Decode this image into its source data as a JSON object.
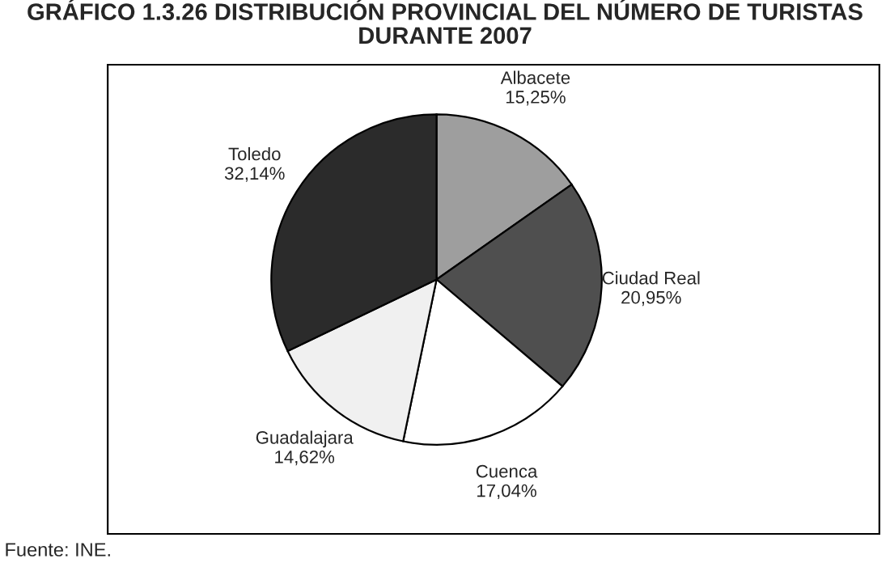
{
  "chart_data": {
    "type": "pie",
    "title": "GRÁFICO 1.3.26 DISTRIBUCIÓN PROVINCIAL DEL NÚMERO DE TURISTAS\nDURANTE 2007",
    "categories": [
      "Albacete",
      "Ciudad Real",
      "Cuenca",
      "Guadalajara",
      "Toledo"
    ],
    "values": [
      15.25,
      20.95,
      17.04,
      14.62,
      32.14
    ],
    "value_labels": [
      "15,25%",
      "20,95%",
      "17,04%",
      "14,62%",
      "32,14%"
    ],
    "colors": [
      "#9e9e9e",
      "#4f4f4f",
      "#ffffff",
      "#f0f0f0",
      "#2b2b2b"
    ],
    "legend": false,
    "annotations": [
      "Fuente: INE."
    ]
  }
}
